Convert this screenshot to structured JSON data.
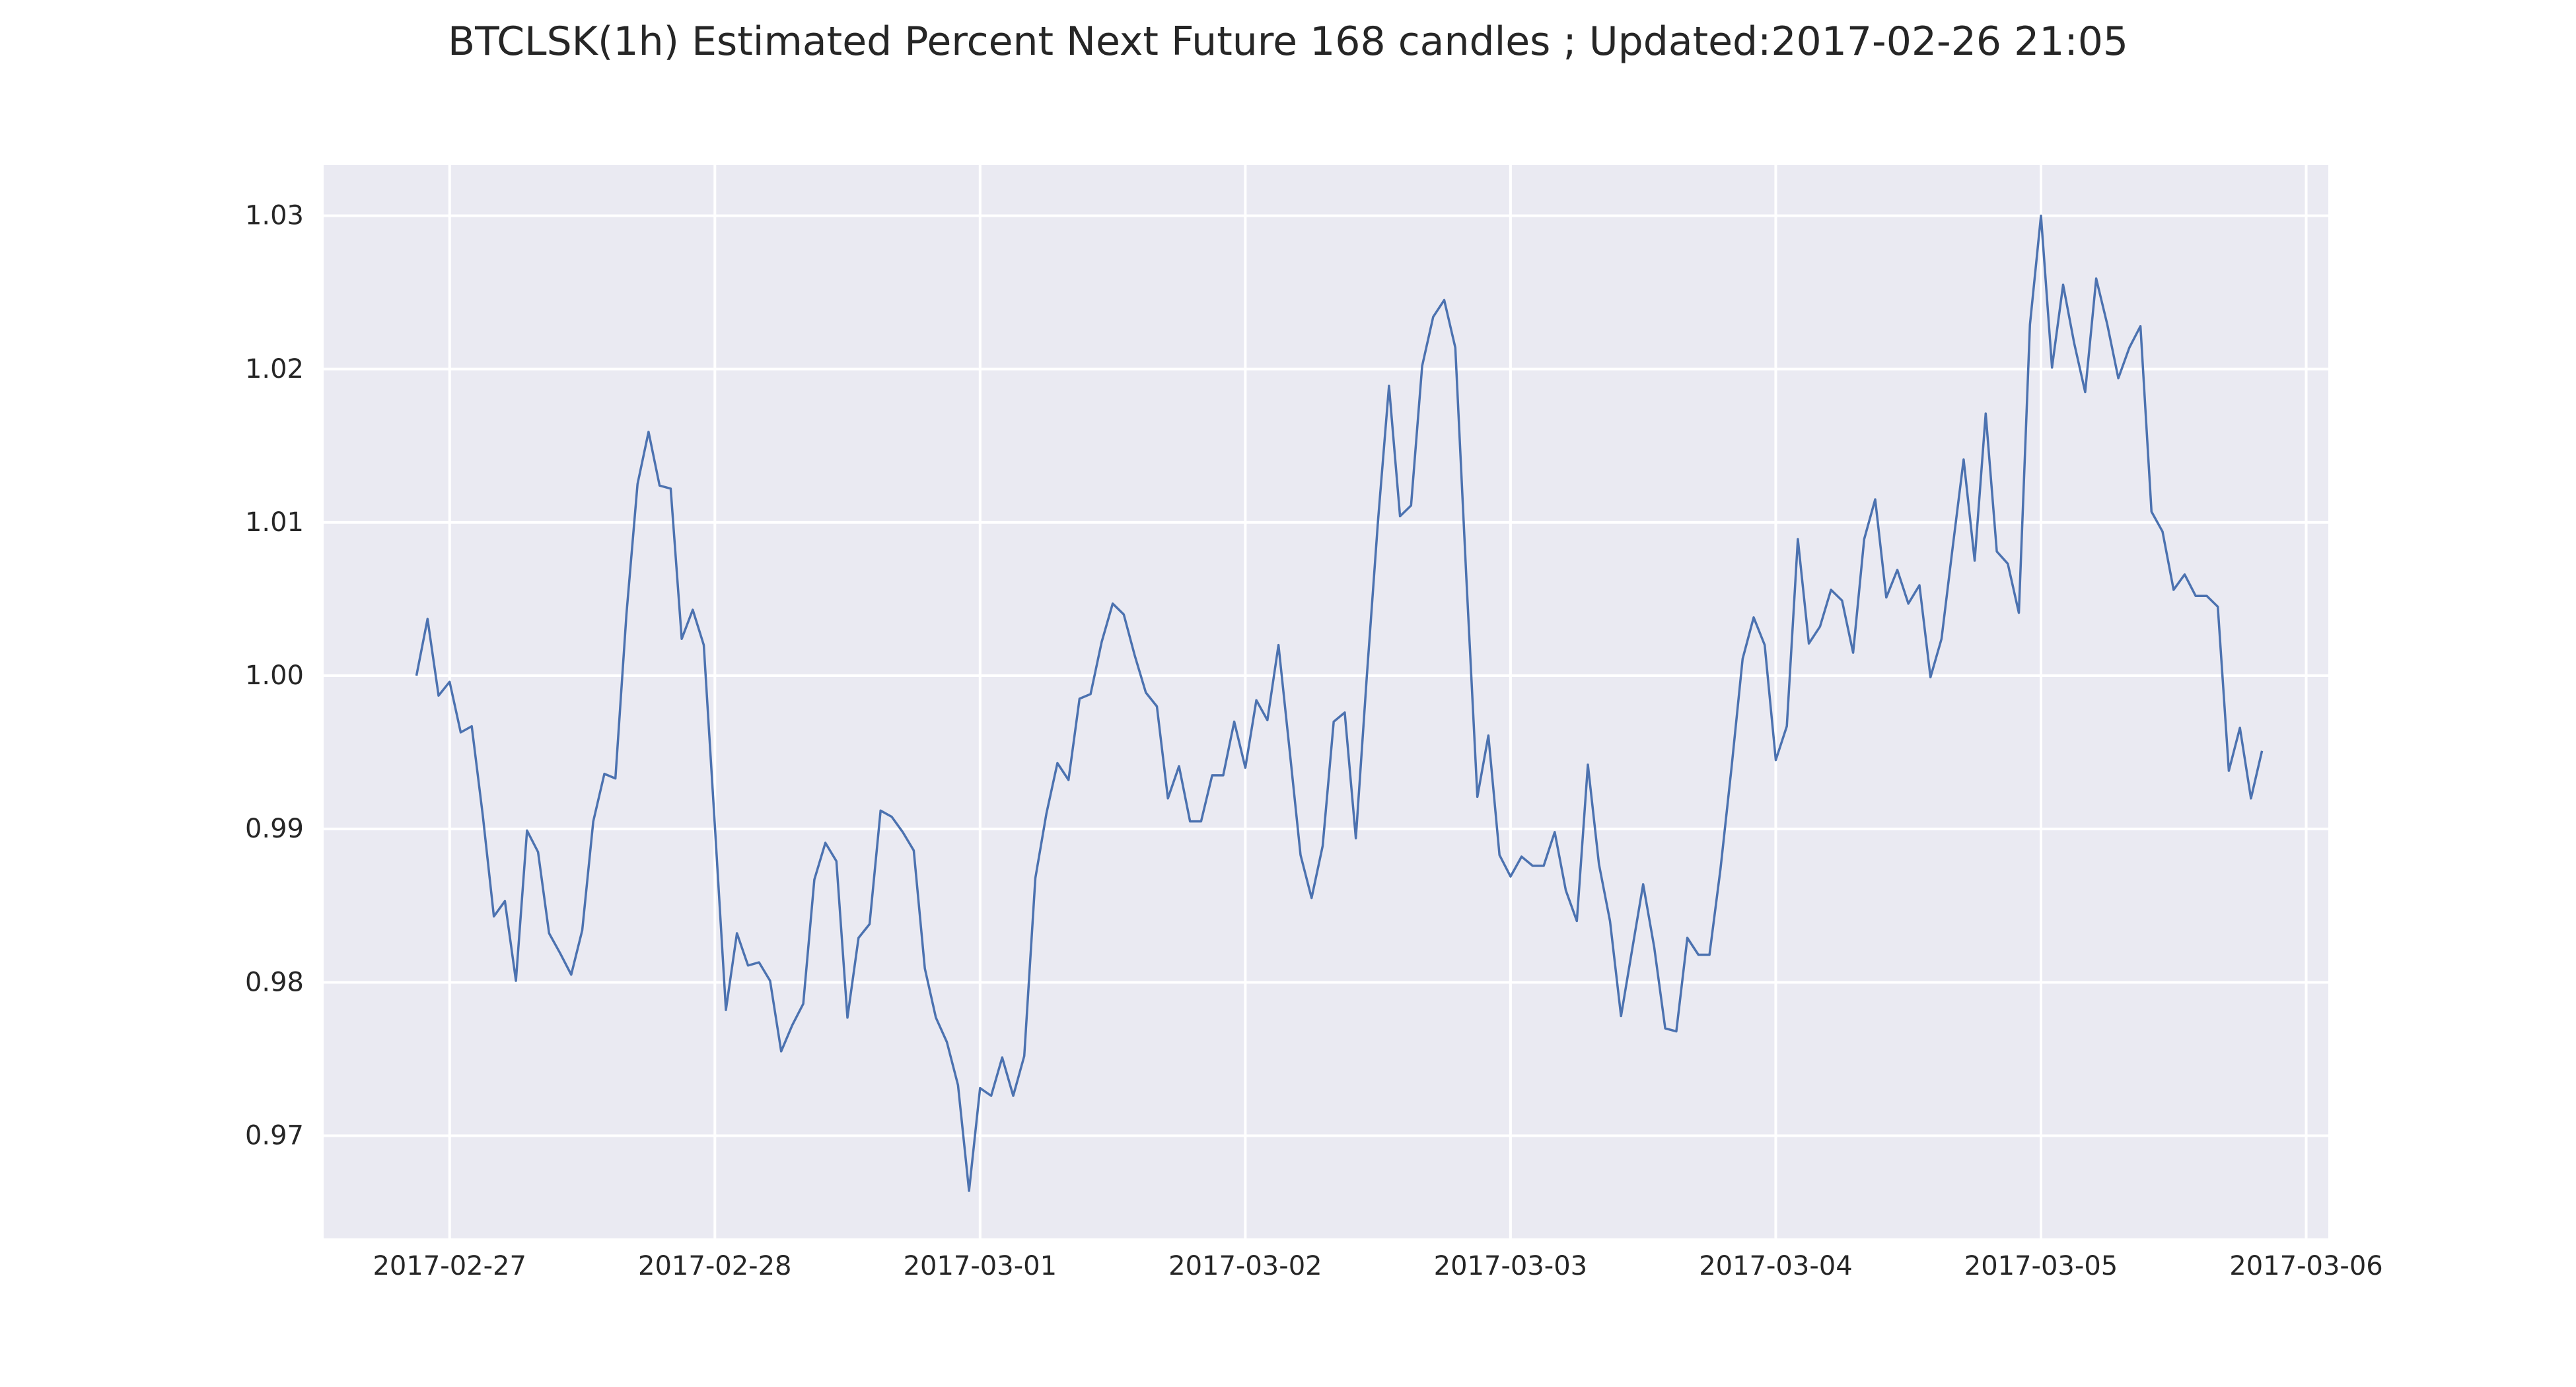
{
  "chart_data": {
    "type": "line",
    "title": "BTCLSK(1h) Estimated Percent Next Future 168 candles ; Updated:2017-02-26 21:05",
    "xlabel": "",
    "ylabel": "",
    "x_start": "2017-02-26 21:00",
    "x_interval": "1h",
    "xlim": [
      "2017-02-26 12:36",
      "2017-03-06 02:00"
    ],
    "ylim": [
      0.9633,
      1.0333
    ],
    "grid": true,
    "x_ticks": [
      "2017-02-27",
      "2017-02-28",
      "2017-03-01",
      "2017-03-02",
      "2017-03-03",
      "2017-03-04",
      "2017-03-05",
      "2017-03-06"
    ],
    "y_ticks": [
      0.97,
      0.98,
      0.99,
      1.0,
      1.01,
      1.02,
      1.03
    ],
    "y_tick_labels": [
      "0.97",
      "0.98",
      "0.99",
      "1.00",
      "1.01",
      "1.02",
      "1.03"
    ],
    "series": [
      {
        "color": "#4c72b0",
        "values": [
          1.0,
          1.0037,
          0.9987,
          0.9996,
          0.9963,
          0.9967,
          0.9909,
          0.9843,
          0.9853,
          0.9801,
          0.9899,
          0.9885,
          0.9832,
          0.9819,
          0.9805,
          0.9834,
          0.9905,
          0.9936,
          0.9933,
          1.004,
          1.0125,
          1.0159,
          1.0124,
          1.0122,
          1.0024,
          1.0043,
          1.002,
          0.9902,
          0.9782,
          0.9832,
          0.9811,
          0.9813,
          0.9801,
          0.9755,
          0.9772,
          0.9786,
          0.9867,
          0.9891,
          0.9879,
          0.9777,
          0.9829,
          0.9838,
          0.9912,
          0.9908,
          0.9898,
          0.9886,
          0.9809,
          0.9777,
          0.9761,
          0.9733,
          0.9664,
          0.9731,
          0.9726,
          0.9751,
          0.9726,
          0.9752,
          0.9868,
          0.991,
          0.9943,
          0.9932,
          0.9985,
          0.9988,
          1.0022,
          1.0047,
          1.004,
          1.0013,
          0.9989,
          0.998,
          0.992,
          0.9941,
          0.9905,
          0.9905,
          0.9935,
          0.9935,
          0.997,
          0.994,
          0.9984,
          0.9971,
          1.002,
          0.9952,
          0.9883,
          0.9855,
          0.9889,
          0.997,
          0.9976,
          0.9894,
          1.0,
          1.01,
          1.0189,
          1.0104,
          1.0111,
          1.0202,
          1.0234,
          1.0245,
          1.0214,
          1.0064,
          0.9921,
          0.9961,
          0.9883,
          0.9869,
          0.9882,
          0.9876,
          0.9876,
          0.9898,
          0.986,
          0.984,
          0.9942,
          0.9877,
          0.984,
          0.9778,
          0.9821,
          0.9864,
          0.9823,
          0.977,
          0.9768,
          0.9829,
          0.9818,
          0.9818,
          0.9874,
          0.994,
          1.0011,
          1.0038,
          1.002,
          0.9945,
          0.9967,
          1.0089,
          1.0021,
          1.0032,
          1.0056,
          1.0049,
          1.0015,
          1.0089,
          1.0115,
          1.0051,
          1.0069,
          1.0047,
          1.0059,
          0.9999,
          1.0024,
          1.0083,
          1.0141,
          1.0075,
          1.0171,
          1.0081,
          1.0073,
          1.0041,
          1.0229,
          1.03,
          1.0201,
          1.0255,
          1.0217,
          1.0185,
          1.0259,
          1.0229,
          1.0194,
          1.0214,
          1.0228,
          1.0107,
          1.0094,
          1.0056,
          1.0066,
          1.0052,
          1.0052,
          1.0045,
          0.9938,
          0.9966,
          0.992,
          0.9951
        ]
      }
    ]
  }
}
